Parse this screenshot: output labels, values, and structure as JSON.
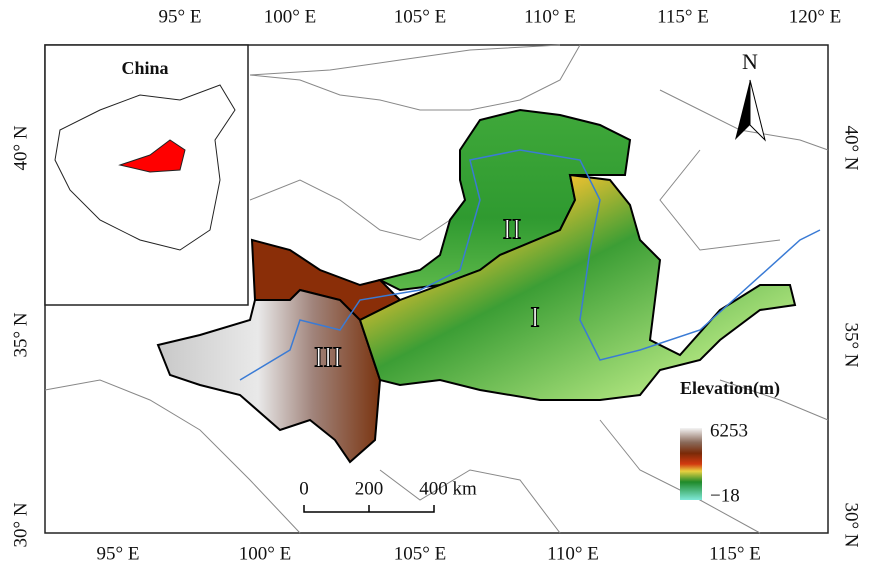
{
  "axes": {
    "top": [
      "95° E",
      "100° E",
      "105° E",
      "110° E",
      "115° E",
      "120° E"
    ],
    "bottom": [
      "95° E",
      "100° E",
      "105° E",
      "110° E",
      "115° E"
    ],
    "left": [
      "40° N",
      "35° N",
      "30° N"
    ],
    "right": [
      "40° N",
      "35° N",
      "30° N"
    ]
  },
  "inset": {
    "title": "China"
  },
  "north_arrow": "N",
  "legend": {
    "title": "Elevation(m)",
    "max": "6253",
    "min": "−18"
  },
  "scale_bar": {
    "labels": [
      "0",
      "200",
      "400 km"
    ]
  },
  "regions": [
    "I",
    "II",
    "III"
  ]
}
